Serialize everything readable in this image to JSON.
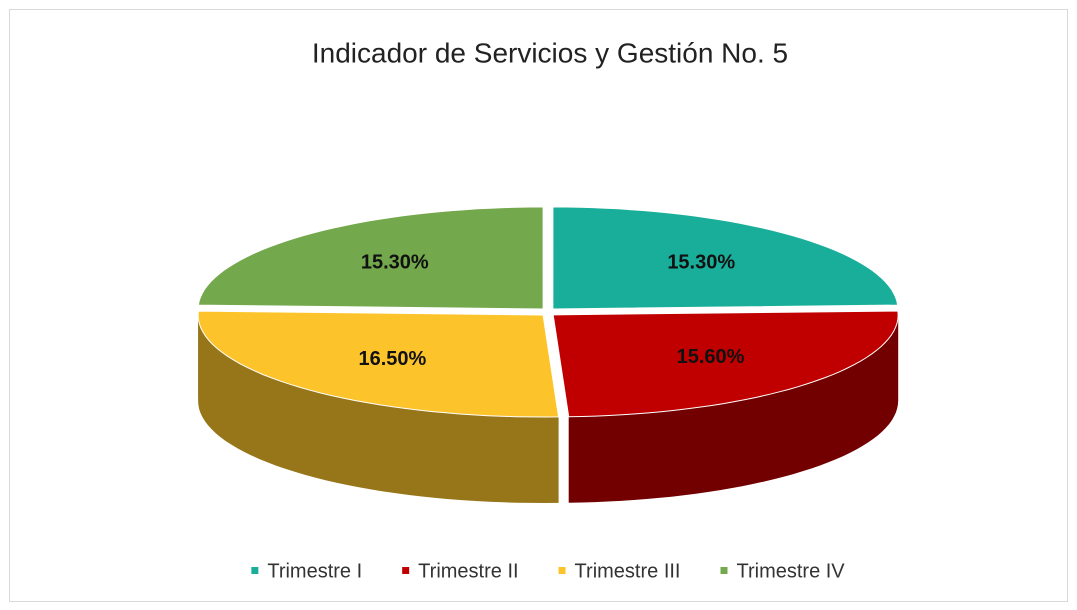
{
  "chart_data": {
    "type": "pie",
    "title": "Indicador de Servicios y Gestión No. 5",
    "categories": [
      "Trimestre I",
      "Trimestre II",
      "Trimestre III",
      "Trimestre IV"
    ],
    "values": [
      15.3,
      15.6,
      16.5,
      15.3
    ],
    "value_labels": [
      "15.30%",
      "15.60%",
      "16.50%",
      "15.30%"
    ],
    "colors": [
      "#19ae9a",
      "#c00000",
      "#fcc42a",
      "#73a84c"
    ],
    "legend": "bottom"
  }
}
